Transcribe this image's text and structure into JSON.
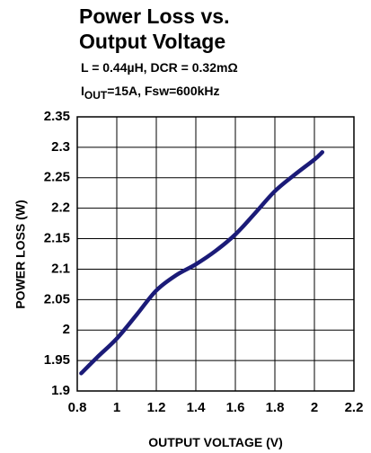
{
  "chart_data": {
    "type": "line",
    "title": [
      "Power Loss vs.",
      "Output Voltage"
    ],
    "subtitle": [
      "L = 0.44µH, DCR = 0.32mΩ",
      {
        "main": "I",
        "sub": "OUT",
        "rest": "=15A, Fsw=600kHz"
      }
    ],
    "xlabel": "OUTPUT VOLTAGE (V)",
    "ylabel": "POWER LOSS (W)",
    "x": [
      0.82,
      0.9,
      1.0,
      1.1,
      1.2,
      1.3,
      1.4,
      1.5,
      1.6,
      1.7,
      1.8,
      1.9,
      2.0,
      2.04
    ],
    "values": [
      1.929,
      1.955,
      1.986,
      2.025,
      2.065,
      2.09,
      2.108,
      2.13,
      2.157,
      2.192,
      2.228,
      2.255,
      2.28,
      2.292
    ],
    "color": "#1b1b78",
    "xlim": [
      0.8,
      2.2
    ],
    "xticks": [
      0.8,
      1,
      1.2,
      1.4,
      1.6,
      1.8,
      2,
      2.2
    ],
    "ylim": [
      1.9,
      2.35
    ],
    "yticks": [
      1.9,
      1.95,
      2,
      2.05,
      2.1,
      2.15,
      2.2,
      2.25,
      2.3,
      2.35
    ],
    "grid": true
  }
}
